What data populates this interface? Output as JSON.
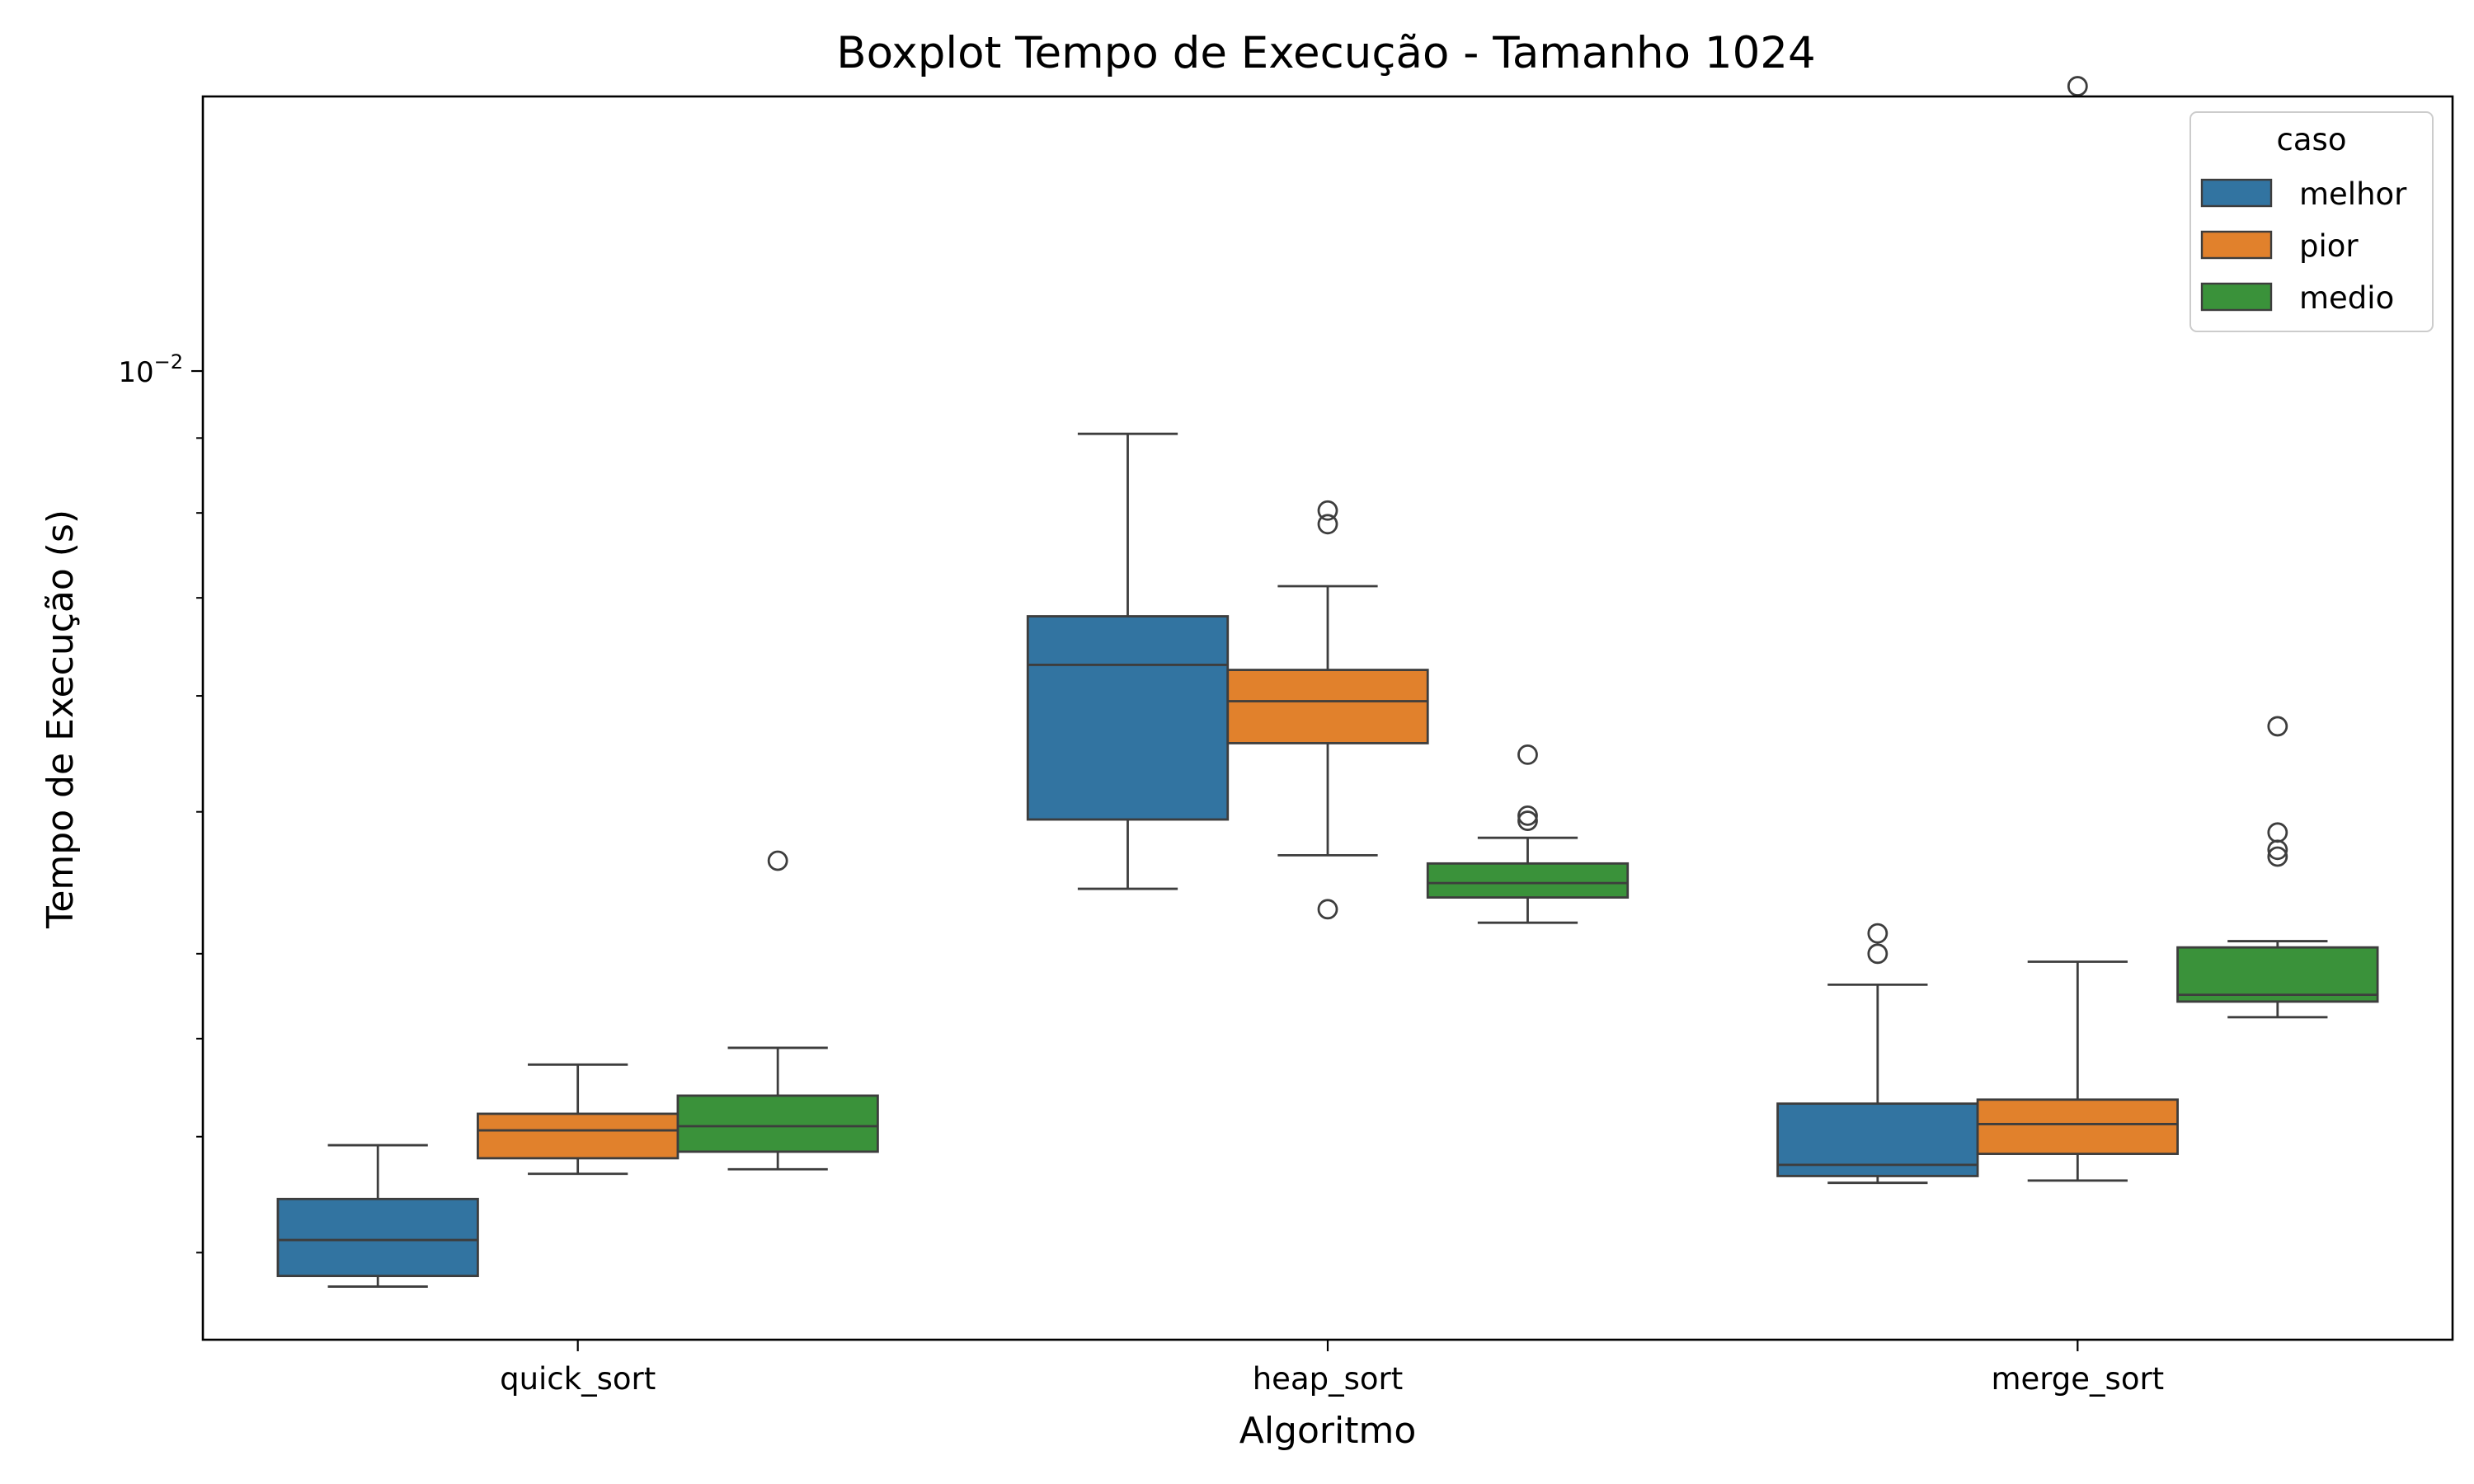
{
  "chart_data": {
    "type": "box",
    "title": "Boxplot Tempo de Execução - Tamanho 1024",
    "xlabel": "Algoritmo",
    "ylabel": "Tempo de Execução (s)",
    "yscale": "log",
    "ylim": [
      0.00218,
      0.0154
    ],
    "y_ticks": [
      {
        "value": 0.01,
        "base": "10",
        "exp": "−2"
      }
    ],
    "y_minor_ticks": [
      0.0025,
      0.003,
      0.0035,
      0.004,
      0.005,
      0.006,
      0.007,
      0.008,
      0.009,
      0.02
    ],
    "categories": [
      "quick_sort",
      "heap_sort",
      "merge_sort"
    ],
    "grid": false,
    "legend": {
      "title": "caso",
      "position": "top-right"
    },
    "series": [
      {
        "name": "melhor",
        "color": "#3274a1",
        "boxes": [
          {
            "whislo": 0.00237,
            "q1": 0.00241,
            "med": 0.00255,
            "q3": 0.00272,
            "whishi": 0.00296,
            "fliers": []
          },
          {
            "whislo": 0.00443,
            "q1": 0.00494,
            "med": 0.0063,
            "q3": 0.0068,
            "whishi": 0.00906,
            "fliers": []
          },
          {
            "whislo": 0.00279,
            "q1": 0.00282,
            "med": 0.00287,
            "q3": 0.00316,
            "whishi": 0.00381,
            "fliers": [
              0.004,
              0.00413
            ]
          }
        ]
      },
      {
        "name": "pior",
        "color": "#e1812c",
        "boxes": [
          {
            "whislo": 0.00283,
            "q1": 0.0029,
            "med": 0.00303,
            "q3": 0.00311,
            "whishi": 0.00336,
            "fliers": []
          },
          {
            "whislo": 0.00467,
            "q1": 0.00557,
            "med": 0.00595,
            "q3": 0.00625,
            "whishi": 0.00713,
            "fliers": [
              0.00429,
              0.00786,
              0.00803
            ]
          },
          {
            "whislo": 0.0028,
            "q1": 0.00292,
            "med": 0.00306,
            "q3": 0.00318,
            "whishi": 0.00395,
            "fliers": [
              0.01565
            ]
          }
        ]
      },
      {
        "name": "medio",
        "color": "#3a923a",
        "boxes": [
          {
            "whislo": 0.00285,
            "q1": 0.00293,
            "med": 0.00305,
            "q3": 0.0032,
            "whishi": 0.00345,
            "fliers": [
              0.00463
            ]
          },
          {
            "whislo": 0.0042,
            "q1": 0.00437,
            "med": 0.00447,
            "q3": 0.00461,
            "whishi": 0.0048,
            "fliers": [
              0.00493,
              0.00497,
              0.00547
            ]
          },
          {
            "whislo": 0.00362,
            "q1": 0.00371,
            "med": 0.00375,
            "q3": 0.00404,
            "whishi": 0.00408,
            "fliers": [
              0.00466,
              0.00471,
              0.00484,
              0.00572
            ]
          }
        ]
      }
    ]
  }
}
